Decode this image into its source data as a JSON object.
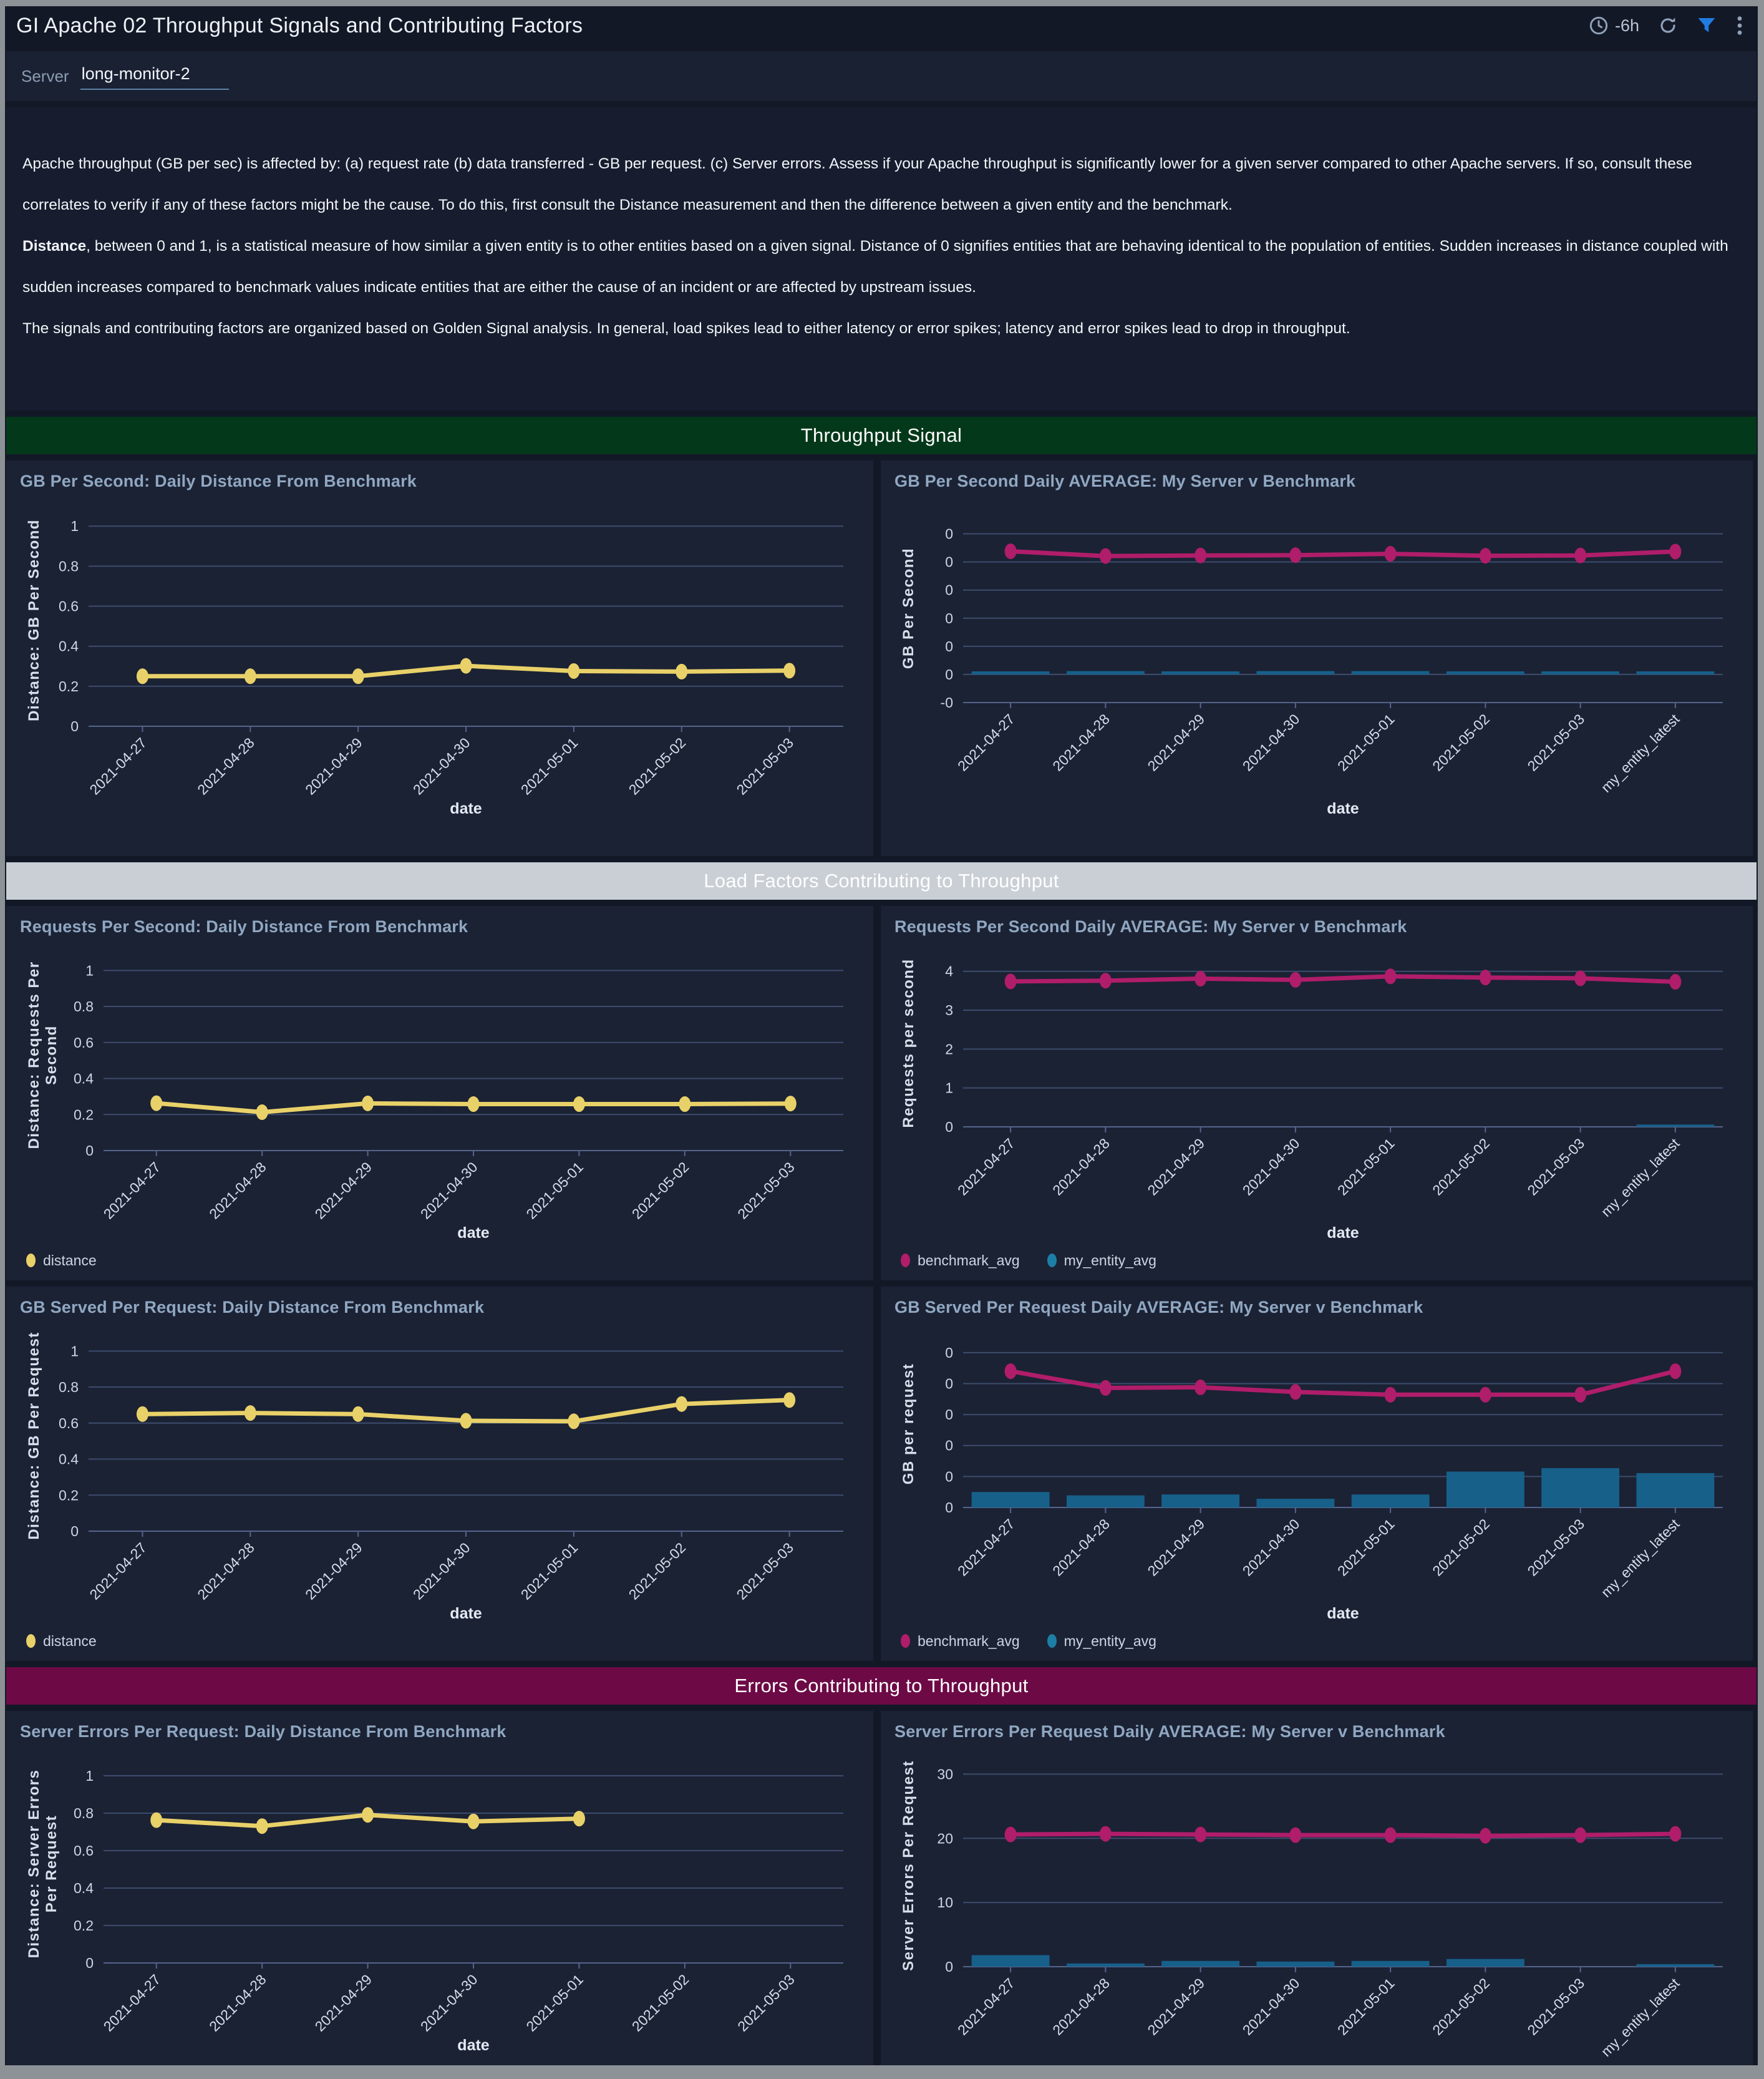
{
  "header": {
    "title": "GI Apache 02 Throughput Signals and Contributing Factors",
    "time_range": "-6h"
  },
  "filter": {
    "label": "Server",
    "value": "long-monitor-2"
  },
  "description": {
    "p1": "Apache throughput (GB per sec) is affected by: (a) request rate (b) data transferred - GB per request. (c) Server errors. Assess if your Apache throughput is significantly lower for a given server compared to other Apache servers. If so, consult these correlates to verify if any of these factors might be the cause. To do this, first consult the Distance measurement and then the difference between a given entity and the benchmark.",
    "p2_lead": "Distance",
    "p2_rest": ", between 0 and 1, is a statistical measure of how similar a given entity is to other entities based on a given signal. Distance of 0 signifies entities that are behaving identical to the population of entities. Sudden increases in distance coupled with sudden increases compared to benchmark values indicate entities that are either the cause of an incident or are affected by upstream issues.",
    "p3": "The signals and contributing factors are organized based on Golden Signal analysis. In general, load spikes lead to either latency or error spikes; latency and error spikes lead to drop in throughput."
  },
  "sections": [
    {
      "label": "Throughput Signal",
      "bg": "#03391a",
      "fg": "#ffffff"
    },
    {
      "label": "Load Factors Contributing to Throughput",
      "bg": "#c9cfd5",
      "fg": "#ffffff"
    },
    {
      "label": "Errors Contributing to Throughput",
      "bg": "#6d0a46",
      "fg": "#ffffff"
    }
  ],
  "colors": {
    "distance_line": "#e9d169",
    "benchmark_line": "#b01d6a",
    "entity_bar": "#17608a",
    "entity_legend": "#1d7fa6",
    "filter_icon_accent": "#1f7ce0",
    "grid": "#3d4c6d",
    "panel_bg": "#1b2234",
    "page_bg": "#131827"
  },
  "chart_data": [
    {
      "type": "line",
      "title": "GB Per Second: Daily Distance From Benchmark",
      "categories": [
        "2021-04-27",
        "2021-04-28",
        "2021-04-29",
        "2021-04-30",
        "2021-05-01",
        "2021-05-02",
        "2021-05-03"
      ],
      "xlabel": "date",
      "ylabel_lines": [
        "Distance: GB Per Second"
      ],
      "ylim": [
        0,
        1.06
      ],
      "ytick_values": [
        1,
        0.8,
        0.6,
        0.4,
        0.2,
        0
      ],
      "ytick_labels": [
        "1",
        "0.8",
        "0.6",
        "0.4",
        "0.2",
        "0"
      ],
      "series": [
        {
          "name": "distance",
          "kind": "line",
          "color": "#e9d169",
          "values": [
            0.25,
            0.25,
            0.25,
            0.302,
            0.276,
            0.273,
            0.278
          ]
        }
      ],
      "legend": []
    },
    {
      "type": "line",
      "title": "GB Per Second Daily AVERAGE: My Server v Benchmark",
      "categories": [
        "2021-04-27",
        "2021-04-28",
        "2021-04-29",
        "2021-04-30",
        "2021-05-01",
        "2021-05-02",
        "2021-05-03",
        "my_entity_latest"
      ],
      "xlabel": "date",
      "ylabel_lines": [
        "GB Per Second"
      ],
      "ylim": [
        -0.01,
        0.057
      ],
      "ytick_values": [
        0.05,
        0.04,
        0.03,
        0.02,
        0.01,
        0,
        -0.01
      ],
      "ytick_labels": [
        "0",
        "0",
        "0",
        "0",
        "0",
        "0",
        "-0"
      ],
      "series": [
        {
          "name": "my_entity_avg",
          "kind": "bar",
          "color": "#17608a",
          "values": [
            0.0011,
            0.0012,
            0.0011,
            0.0012,
            0.0012,
            0.0011,
            0.0011,
            0.0011
          ]
        },
        {
          "name": "benchmark_avg",
          "kind": "line",
          "color": "#b01d6a",
          "values": [
            0.0438,
            0.0421,
            0.0423,
            0.0424,
            0.0429,
            0.0422,
            0.0423,
            0.0437
          ]
        }
      ],
      "legend": []
    },
    {
      "type": "line",
      "title": "Requests Per Second: Daily Distance From Benchmark",
      "categories": [
        "2021-04-27",
        "2021-04-28",
        "2021-04-29",
        "2021-04-30",
        "2021-05-01",
        "2021-05-02",
        "2021-05-03"
      ],
      "xlabel": "date",
      "ylabel_lines": [
        "Distance: Requests Per",
        "Second"
      ],
      "ylim": [
        0,
        1.06
      ],
      "ytick_values": [
        1,
        0.8,
        0.6,
        0.4,
        0.2,
        0
      ],
      "ytick_labels": [
        "1",
        "0.8",
        "0.6",
        "0.4",
        "0.2",
        "0"
      ],
      "series": [
        {
          "name": "distance",
          "kind": "line",
          "color": "#e9d169",
          "values": [
            0.263,
            0.213,
            0.262,
            0.258,
            0.258,
            0.258,
            0.261
          ]
        }
      ],
      "legend": [
        {
          "label": "distance",
          "color": "#e9d169"
        }
      ]
    },
    {
      "type": "line",
      "title": "Requests Per Second Daily AVERAGE: My Server v Benchmark",
      "categories": [
        "2021-04-27",
        "2021-04-28",
        "2021-04-29",
        "2021-04-30",
        "2021-05-01",
        "2021-05-02",
        "2021-05-03",
        "my_entity_latest"
      ],
      "xlabel": "date",
      "ylabel_lines": [
        "Requests per second"
      ],
      "ylim": [
        0,
        4.3
      ],
      "ytick_values": [
        4,
        3,
        2,
        1,
        0
      ],
      "ytick_labels": [
        "4",
        "3",
        "2",
        "1",
        "0"
      ],
      "series": [
        {
          "name": "my_entity_avg",
          "kind": "bar",
          "color": "#17608a",
          "values": [
            0,
            0,
            0,
            0,
            0,
            0,
            0,
            0.06
          ]
        },
        {
          "name": "benchmark_avg",
          "kind": "line",
          "color": "#b01d6a",
          "values": [
            3.74,
            3.76,
            3.81,
            3.78,
            3.87,
            3.84,
            3.82,
            3.73
          ]
        }
      ],
      "legend": [
        {
          "label": "benchmark_avg",
          "color": "#b01d6a"
        },
        {
          "label": "my_entity_avg",
          "color": "#1d7fa6"
        }
      ]
    },
    {
      "type": "line",
      "title": "GB Served Per Request: Daily Distance From Benchmark",
      "categories": [
        "2021-04-27",
        "2021-04-28",
        "2021-04-29",
        "2021-04-30",
        "2021-05-01",
        "2021-05-02",
        "2021-05-03"
      ],
      "xlabel": "date",
      "ylabel_lines": [
        "Distance: GB Per Request"
      ],
      "ylim": [
        0,
        1.06
      ],
      "ytick_values": [
        1,
        0.8,
        0.6,
        0.4,
        0.2,
        0
      ],
      "ytick_labels": [
        "1",
        "0.8",
        "0.6",
        "0.4",
        "0.2",
        "0"
      ],
      "series": [
        {
          "name": "distance",
          "kind": "line",
          "color": "#e9d169",
          "values": [
            0.65,
            0.656,
            0.65,
            0.613,
            0.61,
            0.706,
            0.728
          ]
        }
      ],
      "legend": [
        {
          "label": "distance",
          "color": "#e9d169"
        }
      ]
    },
    {
      "type": "line",
      "title": "GB Served Per Request Daily AVERAGE: My Server v Benchmark",
      "categories": [
        "2021-04-27",
        "2021-04-28",
        "2021-04-29",
        "2021-04-30",
        "2021-05-01",
        "2021-05-02",
        "2021-05-03",
        "my_entity_latest"
      ],
      "xlabel": "date",
      "ylabel_lines": [
        "GB per request"
      ],
      "ylim": [
        0,
        0.00054
      ],
      "ytick_values": [
        0.0005,
        0.0004,
        0.0003,
        0.0002,
        0.0001,
        0
      ],
      "ytick_labels": [
        "0",
        "0",
        "0",
        "0",
        "0",
        "0"
      ],
      "series": [
        {
          "name": "my_entity_avg",
          "kind": "bar",
          "color": "#17608a",
          "values": [
            5e-05,
            3.9e-05,
            4.2e-05,
            2.8e-05,
            4.2e-05,
            0.000116,
            0.000127,
            0.000111
          ]
        },
        {
          "name": "benchmark_avg",
          "kind": "line",
          "color": "#b01d6a",
          "values": [
            0.00044,
            0.000386,
            0.000388,
            0.000373,
            0.000364,
            0.000364,
            0.000364,
            0.00044
          ]
        }
      ],
      "legend": [
        {
          "label": "benchmark_avg",
          "color": "#b01d6a"
        },
        {
          "label": "my_entity_avg",
          "color": "#1d7fa6"
        }
      ]
    },
    {
      "type": "line",
      "title": "Server Errors Per Request: Daily Distance From Benchmark",
      "categories": [
        "2021-04-27",
        "2021-04-28",
        "2021-04-29",
        "2021-04-30",
        "2021-05-01",
        "2021-05-02",
        "2021-05-03"
      ],
      "xlabel": "date",
      "ylabel_lines": [
        "Distance: Server Errors",
        "Per Request"
      ],
      "ylim": [
        0,
        1.06
      ],
      "ytick_values": [
        1,
        0.8,
        0.6,
        0.4,
        0.2,
        0
      ],
      "ytick_labels": [
        "1",
        "0.8",
        "0.6",
        "0.4",
        "0.2",
        "0"
      ],
      "series": [
        {
          "name": "distance",
          "kind": "line",
          "color": "#e9d169",
          "values": [
            0.763,
            0.731,
            0.791,
            0.756,
            0.771,
            null,
            null
          ]
        }
      ],
      "legend": [
        {
          "label": "distance",
          "color": "#e9d169"
        }
      ]
    },
    {
      "type": "line",
      "title": "Server Errors Per Request Daily AVERAGE: My Server v Benchmark",
      "categories": [
        "2021-04-27",
        "2021-04-28",
        "2021-04-29",
        "2021-04-30",
        "2021-05-01",
        "2021-05-02",
        "2021-05-03",
        "my_entity_latest"
      ],
      "xlabel": "date",
      "ylabel_lines": [
        "Server Errors Per Request"
      ],
      "ylim": [
        0,
        31.5
      ],
      "ytick_values": [
        30,
        20,
        10,
        0
      ],
      "ytick_labels": [
        "30",
        "20",
        "10",
        "0"
      ],
      "series": [
        {
          "name": "my_entity_avg",
          "kind": "bar",
          "color": "#17608a",
          "values": [
            1.8,
            0.5,
            0.9,
            0.8,
            0.9,
            1.2,
            0,
            0.4
          ]
        },
        {
          "name": "benchmark_avg",
          "kind": "line",
          "color": "#b01d6a",
          "values": [
            20.6,
            20.7,
            20.6,
            20.5,
            20.5,
            20.4,
            20.5,
            20.7
          ]
        }
      ],
      "legend": []
    }
  ]
}
